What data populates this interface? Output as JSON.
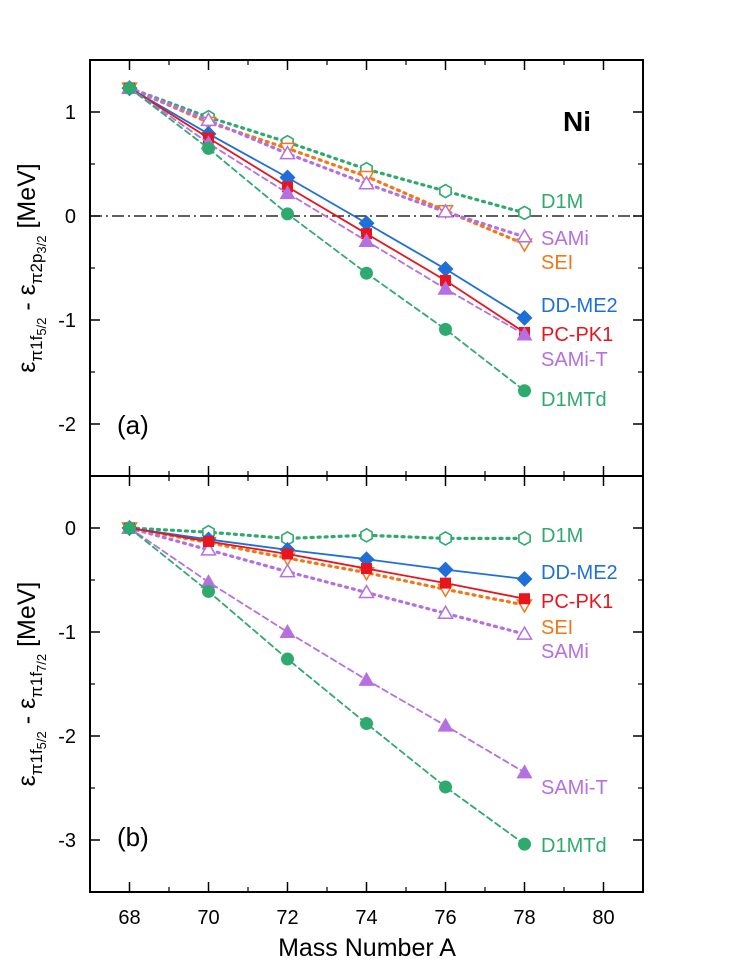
{
  "chart_data": {
    "type": "line",
    "xlabel": "Mass Number A",
    "xlim": [
      67,
      81
    ],
    "xticks": [
      68,
      70,
      72,
      74,
      76,
      78,
      80
    ],
    "nucleus": "Ni",
    "colors": {
      "D1M": "#2eaa6e",
      "D1MTd": "#2eaa6e",
      "SAMi": "#b56fe0",
      "SAMi-T": "#b56fe0",
      "SEI": "#f07818",
      "DD-ME2": "#1f6fd8",
      "PC-PK1": "#e8141e"
    },
    "panels": [
      {
        "label": "(a)",
        "ylabel_parts": [
          "ε",
          "π1f",
          "5/2",
          " - ε",
          "π2p",
          "3/2",
          " [MeV]"
        ],
        "ylim": [
          -2.5,
          1.5
        ],
        "yticks": [
          -2,
          -1,
          0,
          1
        ],
        "zero_line": true,
        "x": [
          68,
          70,
          72,
          74,
          76,
          78
        ],
        "series": [
          {
            "name": "D1M",
            "style": "dotted",
            "marker": "hexagon-open",
            "values": [
              1.23,
              0.95,
              0.71,
              0.45,
              0.24,
              0.03
            ]
          },
          {
            "name": "SEI",
            "style": "dotted",
            "marker": "triangle-down-open",
            "values": [
              1.23,
              0.9,
              0.65,
              0.38,
              0.05,
              -0.27
            ]
          },
          {
            "name": "SAMi",
            "style": "dotted",
            "marker": "triangle-up-open",
            "values": [
              1.23,
              0.92,
              0.6,
              0.31,
              0.04,
              -0.2
            ]
          },
          {
            "name": "DD-ME2",
            "style": "solid",
            "marker": "diamond",
            "values": [
              1.23,
              0.79,
              0.37,
              -0.07,
              -0.51,
              -0.98
            ]
          },
          {
            "name": "PC-PK1",
            "style": "solid",
            "marker": "square",
            "values": [
              1.23,
              0.75,
              0.28,
              -0.17,
              -0.62,
              -1.12
            ]
          },
          {
            "name": "SAMi-T",
            "style": "dashed",
            "marker": "triangle-up",
            "values": [
              1.23,
              0.7,
              0.22,
              -0.24,
              -0.7,
              -1.14
            ]
          },
          {
            "name": "D1MTd",
            "style": "dashed",
            "marker": "circle",
            "values": [
              1.23,
              0.65,
              0.02,
              -0.55,
              -1.09,
              -1.68
            ]
          }
        ],
        "legend": [
          "D1M",
          "SAMi",
          "SEI",
          "DD-ME2",
          "PC-PK1",
          "SAMi-T",
          "D1MTd"
        ]
      },
      {
        "label": "(b)",
        "ylabel_parts": [
          "ε",
          "π1f",
          "5/2",
          " - ε",
          "π1f",
          "7/2",
          " [MeV]"
        ],
        "ylim": [
          -3.5,
          0.5
        ],
        "yticks": [
          -3,
          -2,
          -1,
          0
        ],
        "zero_line": false,
        "x": [
          68,
          70,
          72,
          74,
          76,
          78
        ],
        "series": [
          {
            "name": "D1M",
            "style": "dotted",
            "marker": "hexagon-open",
            "values": [
              0.0,
              -0.04,
              -0.1,
              -0.07,
              -0.1,
              -0.1
            ]
          },
          {
            "name": "SEI",
            "style": "dotted",
            "marker": "triangle-down-open",
            "values": [
              0.0,
              -0.14,
              -0.29,
              -0.43,
              -0.59,
              -0.74
            ]
          },
          {
            "name": "SAMi",
            "style": "dotted",
            "marker": "triangle-up-open",
            "values": [
              0.0,
              -0.21,
              -0.42,
              -0.62,
              -0.82,
              -1.02
            ]
          },
          {
            "name": "DD-ME2",
            "style": "solid",
            "marker": "diamond",
            "values": [
              0.0,
              -0.11,
              -0.21,
              -0.3,
              -0.4,
              -0.49
            ]
          },
          {
            "name": "PC-PK1",
            "style": "solid",
            "marker": "square",
            "values": [
              0.0,
              -0.13,
              -0.25,
              -0.39,
              -0.53,
              -0.68
            ]
          },
          {
            "name": "SAMi-T",
            "style": "dashed",
            "marker": "triangle-up",
            "values": [
              0.0,
              -0.52,
              -1.0,
              -1.46,
              -1.9,
              -2.35
            ]
          },
          {
            "name": "D1MTd",
            "style": "dashed",
            "marker": "circle",
            "values": [
              0.0,
              -0.61,
              -1.26,
              -1.88,
              -2.49,
              -3.04
            ]
          }
        ],
        "legend": [
          "D1M",
          "DD-ME2",
          "PC-PK1",
          "SEI",
          "SAMi",
          "SAMi-T",
          "D1MTd"
        ]
      }
    ]
  }
}
